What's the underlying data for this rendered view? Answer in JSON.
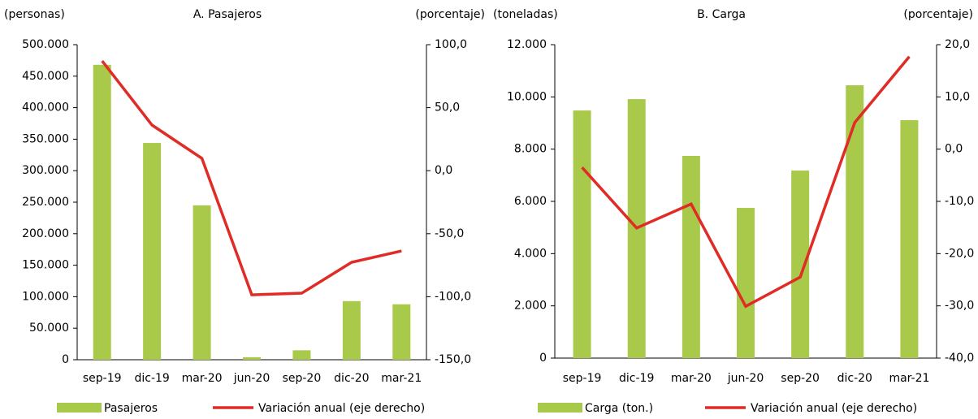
{
  "chart_data": [
    {
      "type": "combo",
      "title": "A. Pasajeros",
      "y_label": "(personas)",
      "y2_label": "(porcentaje)",
      "categories": [
        "sep-19",
        "dic-19",
        "mar-20",
        "jun-20",
        "sep-20",
        "dic-20",
        "mar-21"
      ],
      "series": [
        {
          "name": "Pasajeros",
          "color": "#a9c94a",
          "type": "bar",
          "values": [
            468000,
            344000,
            245000,
            4000,
            15000,
            93000,
            88000
          ]
        },
        {
          "name": "Variación anual (eje derecho)",
          "color": "#e02b27",
          "type": "line",
          "axis": "y2",
          "values": [
            87.1,
            36.2,
            9.8,
            -98.5,
            -97.2,
            -72.7,
            -63.7
          ]
        }
      ],
      "ylim": [
        0,
        500000
      ],
      "yticks": [
        0,
        {
          "value": 50000,
          "label": "50.000"
        },
        {
          "value": 100000,
          "label": "100.000"
        },
        {
          "value": 150000,
          "label": "150.000"
        },
        {
          "value": 200000,
          "label": "200.000"
        },
        {
          "value": 250000,
          "label": "250.000"
        },
        {
          "value": 300000,
          "label": "300.000"
        },
        {
          "value": 350000,
          "label": "350.000"
        },
        {
          "value": 400000,
          "label": "400.000"
        },
        {
          "value": 450000,
          "label": "450.000"
        },
        {
          "value": 500000,
          "label": "500.000"
        }
      ],
      "y2lim": [
        -150,
        100
      ],
      "y2ticks": [
        {
          "value": -150,
          "label": "-150,0"
        },
        {
          "value": -100,
          "label": "-100,0"
        },
        {
          "value": -50,
          "label": "-50,0"
        },
        {
          "value": 0,
          "label": "0,0"
        },
        {
          "value": 50,
          "label": "50,0"
        },
        {
          "value": 100,
          "label": "100,0"
        }
      ]
    },
    {
      "type": "combo",
      "title": "B. Carga",
      "y_label": "(toneladas)",
      "y2_label": "(porcentaje)",
      "categories": [
        "sep-19",
        "dic-19",
        "mar-20",
        "jun-20",
        "sep-20",
        "dic-20",
        "mar-21"
      ],
      "series": [
        {
          "name": "Carga (ton.)",
          "color": "#a9c94a",
          "type": "bar",
          "values": [
            9480,
            9915,
            7740,
            5750,
            7180,
            10445,
            9108
          ]
        },
        {
          "name": "Variación anual (eje derecho)",
          "color": "#e02b27",
          "type": "line",
          "axis": "y2",
          "values": [
            -3.5,
            -15.1,
            -10.5,
            -30.1,
            -24.5,
            5.1,
            17.7
          ]
        }
      ],
      "ylim": [
        0,
        12000
      ],
      "yticks": [
        0,
        {
          "value": 2000,
          "label": "2.000"
        },
        {
          "value": 4000,
          "label": "4.000"
        },
        {
          "value": 6000,
          "label": "6.000"
        },
        {
          "value": 8000,
          "label": "8.000"
        },
        {
          "value": 10000,
          "label": "10.000"
        },
        {
          "value": 12000,
          "label": "12.000"
        }
      ],
      "y2lim": [
        -40,
        20
      ],
      "y2ticks": [
        {
          "value": -40,
          "label": "-40,0"
        },
        {
          "value": -30,
          "label": "-30,0"
        },
        {
          "value": -20,
          "label": "-20,0"
        },
        {
          "value": -10,
          "label": "-10,0"
        },
        {
          "value": 0,
          "label": "0,0"
        },
        {
          "value": 10,
          "label": "10,0"
        },
        {
          "value": 20,
          "label": "20,0"
        }
      ]
    }
  ]
}
